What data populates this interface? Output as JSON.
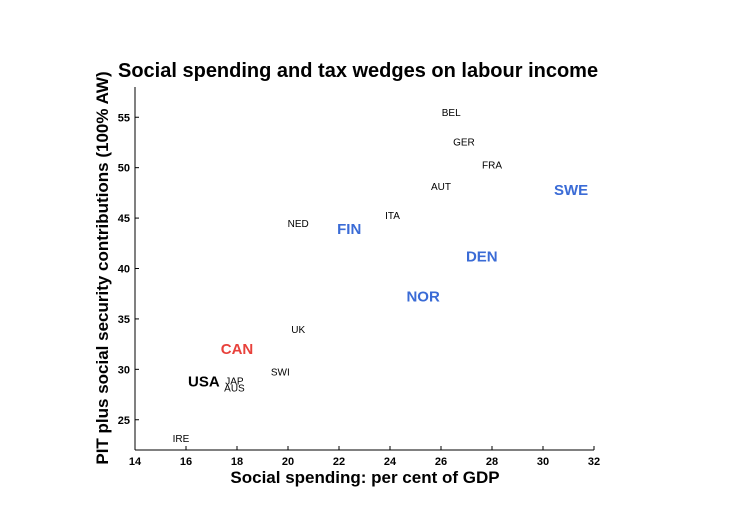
{
  "chart_data": {
    "type": "scatter",
    "title": "Social spending and tax wedges on labour income",
    "xlabel": "Social spending: per cent of GDP",
    "ylabel": "PIT plus social security contributions (100% AW)",
    "xlim": [
      14,
      32
    ],
    "ylim": [
      22,
      58
    ],
    "xticks": [
      14,
      16,
      18,
      20,
      22,
      24,
      26,
      28,
      30,
      32
    ],
    "yticks": [
      25,
      30,
      35,
      40,
      45,
      50,
      55
    ],
    "grid": false,
    "colors": {
      "default": "#000000",
      "nordic": "#3a6bd6",
      "canada": "#e8413b"
    },
    "points": [
      {
        "label": "BEL",
        "x": 26.4,
        "y": 55.4,
        "size": "small",
        "color": "default"
      },
      {
        "label": "GER",
        "x": 26.9,
        "y": 52.5,
        "size": "small",
        "color": "default"
      },
      {
        "label": "FRA",
        "x": 28.0,
        "y": 50.2,
        "size": "small",
        "color": "default"
      },
      {
        "label": "AUT",
        "x": 26.0,
        "y": 48.1,
        "size": "small",
        "color": "default"
      },
      {
        "label": "SWE",
        "x": 31.1,
        "y": 47.8,
        "size": "large",
        "color": "nordic"
      },
      {
        "label": "ITA",
        "x": 24.1,
        "y": 45.2,
        "size": "small",
        "color": "default"
      },
      {
        "label": "NED",
        "x": 20.4,
        "y": 44.4,
        "size": "small",
        "color": "default"
      },
      {
        "label": "FIN",
        "x": 22.4,
        "y": 43.9,
        "size": "large",
        "color": "nordic"
      },
      {
        "label": "DEN",
        "x": 27.6,
        "y": 41.2,
        "size": "large",
        "color": "nordic"
      },
      {
        "label": "NOR",
        "x": 25.3,
        "y": 37.2,
        "size": "large",
        "color": "nordic"
      },
      {
        "label": "UK",
        "x": 20.4,
        "y": 33.9,
        "size": "small",
        "color": "default"
      },
      {
        "label": "CAN",
        "x": 18.0,
        "y": 32.0,
        "size": "large",
        "color": "canada"
      },
      {
        "label": "SWI",
        "x": 19.7,
        "y": 29.7,
        "size": "small",
        "color": "default"
      },
      {
        "label": "USA",
        "x": 16.7,
        "y": 28.8,
        "size": "large",
        "color": "default"
      },
      {
        "label": "JAP",
        "x": 17.9,
        "y": 28.8,
        "size": "small",
        "color": "default"
      },
      {
        "label": "AUS",
        "x": 17.9,
        "y": 28.1,
        "size": "small",
        "color": "default"
      },
      {
        "label": "IRE",
        "x": 15.8,
        "y": 23.1,
        "size": "small",
        "color": "default"
      }
    ]
  }
}
